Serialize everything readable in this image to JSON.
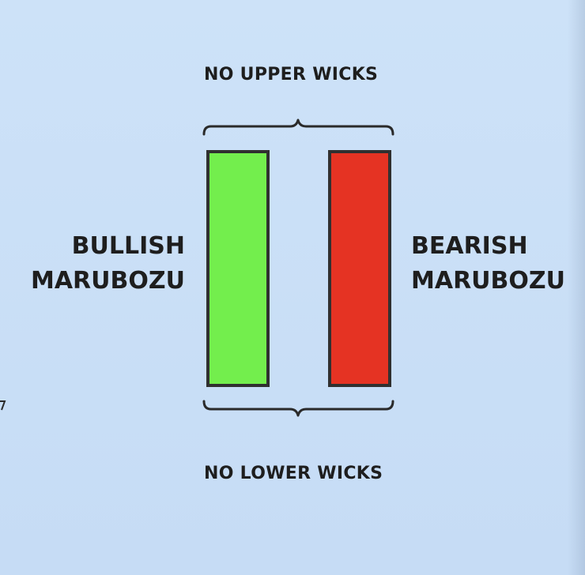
{
  "diagram": {
    "top_caption": "NO UPPER WICKS",
    "bottom_caption": "NO LOWER WICKS",
    "bullish": {
      "line1": "BULLISH",
      "line2": "MARUBOZU",
      "fill_color": "#73ee4d"
    },
    "bearish": {
      "line1": "BEARISH",
      "line2": "MARUBOZU",
      "fill_color": "#e53323"
    },
    "colors": {
      "background": "#c8def6",
      "text": "#1e1e1e",
      "outline": "#303030"
    }
  }
}
